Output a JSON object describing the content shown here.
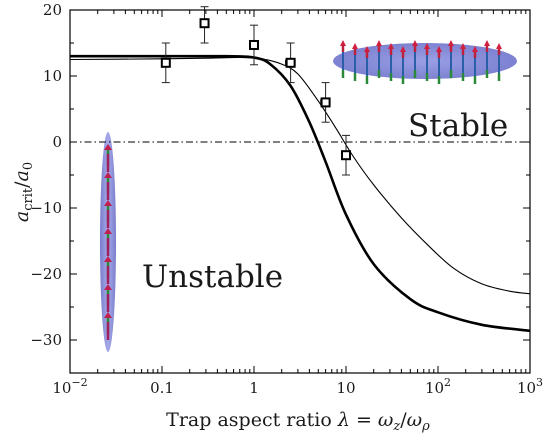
{
  "chart_data": {
    "type": "scatter",
    "title": "",
    "xlabel": "Trap aspect ratio λ = ω_z/ω_ρ",
    "ylabel": "a_crit/a_0",
    "xscale": "log",
    "xlim": [
      0.01,
      1000
    ],
    "ylim": [
      -35,
      20
    ],
    "x_ticks": [
      {
        "value": 0.01,
        "base": "10",
        "exp": "−2"
      },
      {
        "value": 0.1,
        "text": "0.1"
      },
      {
        "value": 1,
        "text": "1"
      },
      {
        "value": 10,
        "text": "10"
      },
      {
        "value": 100,
        "base": "10",
        "exp": "2"
      },
      {
        "value": 1000,
        "base": "10",
        "exp": "3"
      }
    ],
    "y_ticks": [
      {
        "value": 20,
        "text": "20"
      },
      {
        "value": 10,
        "text": "10"
      },
      {
        "value": 0,
        "text": "0"
      },
      {
        "value": -10,
        "text": "−10"
      },
      {
        "value": -20,
        "text": "−20"
      },
      {
        "value": -30,
        "text": "−30"
      }
    ],
    "reference_line": {
      "y": 0,
      "style": "dash-dot"
    },
    "series": [
      {
        "kind": "points",
        "marker": "open-square",
        "points": [
          {
            "x": 0.11,
            "y": 12,
            "xerr": [
              0.01,
              0.01
            ],
            "yerr": [
              3,
              3
            ]
          },
          {
            "x": 0.29,
            "y": 18,
            "xerr": [
              0.03,
              0.03
            ],
            "yerr": [
              3,
              2.5
            ]
          },
          {
            "x": 1.0,
            "y": 14.7,
            "xerr": [
              0.1,
              0.1
            ],
            "yerr": [
              3,
              3
            ]
          },
          {
            "x": 2.5,
            "y": 12,
            "xerr": [
              0.3,
              0.3
            ],
            "yerr": [
              3,
              3
            ]
          },
          {
            "x": 6.0,
            "y": 6,
            "xerr": [
              0.7,
              0.7
            ],
            "yerr": [
              3,
              3
            ]
          },
          {
            "x": 10.0,
            "y": -2,
            "xerr": [
              1.0,
              1.0
            ],
            "yerr": [
              3,
              3
            ]
          }
        ]
      },
      {
        "kind": "line",
        "style": "thin",
        "points": [
          [
            0.01,
            12.5
          ],
          [
            0.1,
            12.6
          ],
          [
            0.3,
            12.7
          ],
          [
            0.7,
            12.8
          ],
          [
            1.2,
            12.6
          ],
          [
            2.0,
            11.8
          ],
          [
            3.0,
            10.3
          ],
          [
            5.0,
            6.2
          ],
          [
            8.0,
            1.8
          ],
          [
            12.0,
            -2.2
          ],
          [
            20.0,
            -6.5
          ],
          [
            40.0,
            -11.5
          ],
          [
            80.0,
            -15.8
          ],
          [
            150.0,
            -19.2
          ],
          [
            300.0,
            -21.5
          ],
          [
            600.0,
            -22.6
          ],
          [
            1000.0,
            -23.0
          ]
        ]
      },
      {
        "kind": "line",
        "style": "thick",
        "points": [
          [
            0.01,
            13.0
          ],
          [
            0.1,
            13.0
          ],
          [
            0.5,
            13.0
          ],
          [
            1.0,
            12.8
          ],
          [
            1.5,
            11.8
          ],
          [
            2.5,
            8.5
          ],
          [
            4.0,
            3.0
          ],
          [
            6.0,
            -3.0
          ],
          [
            10.0,
            -11.0
          ],
          [
            20.0,
            -18.5
          ],
          [
            50.0,
            -23.8
          ],
          [
            100.0,
            -25.8
          ],
          [
            300.0,
            -27.7
          ],
          [
            1000.0,
            -28.6
          ]
        ]
      }
    ],
    "annotations": {
      "stable": "Stable",
      "unstable": "Unstable"
    }
  }
}
